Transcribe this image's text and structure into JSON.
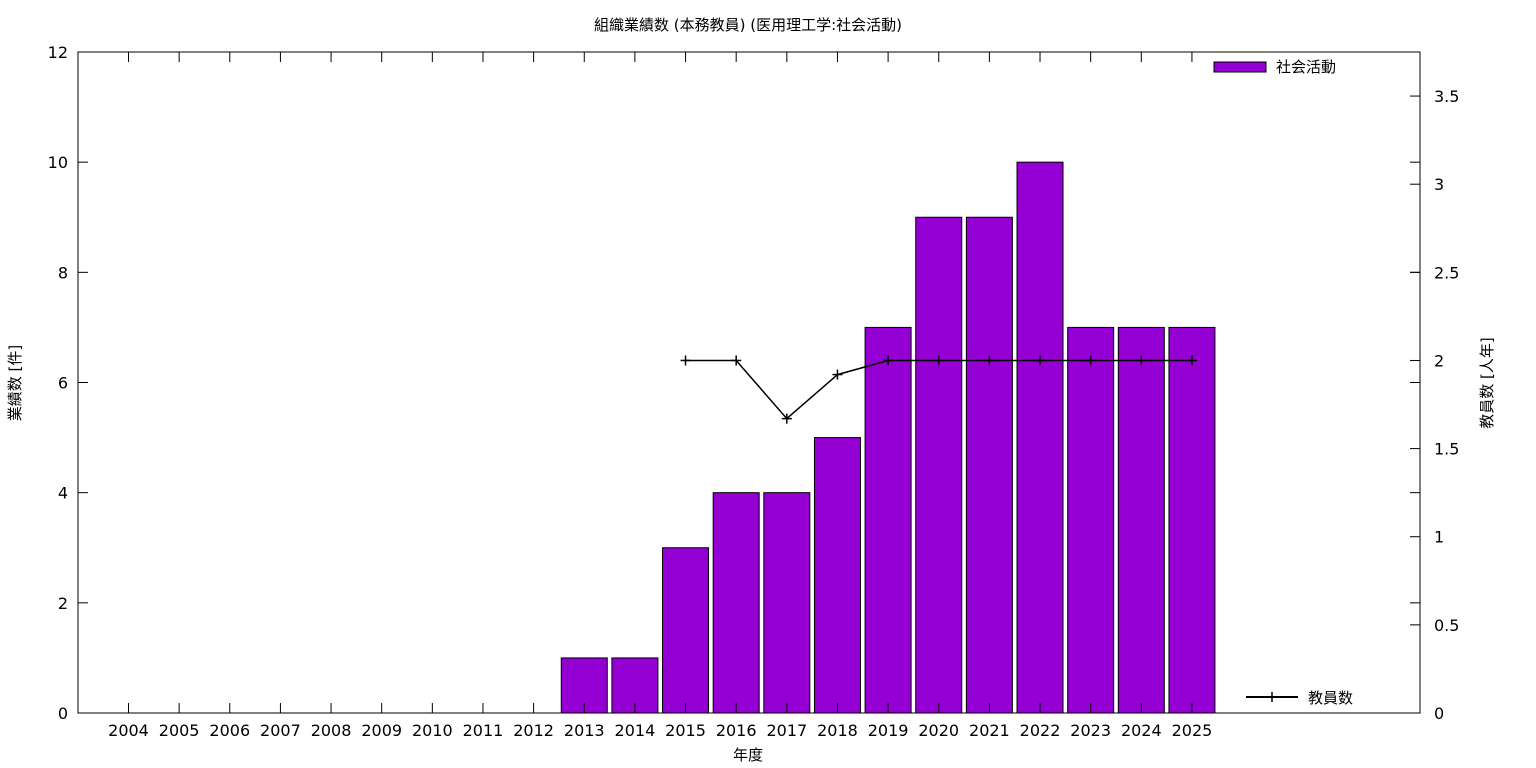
{
  "chart_data": {
    "type": "bar",
    "title": "組織業績数 (本務教員) (医用理工学:社会活動)",
    "xlabel": "年度",
    "ylabel": "業績数 [件]",
    "y2label": "教員数 [人年]",
    "categories": [
      "2004",
      "2005",
      "2006",
      "2007",
      "2008",
      "2009",
      "2010",
      "2011",
      "2012",
      "2013",
      "2014",
      "2015",
      "2016",
      "2017",
      "2018",
      "2019",
      "2020",
      "2021",
      "2022",
      "2023",
      "2024",
      "2025"
    ],
    "ylim": [
      0,
      12
    ],
    "y2lim": [
      0,
      3.75
    ],
    "yticks": [
      "0",
      "2",
      "4",
      "6",
      "8",
      "10",
      "12"
    ],
    "y2ticks": [
      "0",
      "0.5",
      "1",
      "1.5",
      "2",
      "2.5",
      "3",
      "3.5"
    ],
    "grid": false,
    "series": [
      {
        "name": "社会活動",
        "type": "bar",
        "axis": "left",
        "color": "#9400d3",
        "values": [
          0,
          0,
          0,
          0,
          0,
          0,
          0,
          0,
          0,
          1,
          1,
          3,
          4,
          4,
          5,
          7,
          9,
          9,
          10,
          7,
          7,
          7
        ]
      },
      {
        "name": "教員数",
        "type": "line",
        "axis": "right",
        "color": "#000000",
        "values": [
          null,
          null,
          null,
          null,
          null,
          null,
          null,
          null,
          null,
          null,
          null,
          2,
          2,
          1.67,
          1.92,
          2,
          2,
          2,
          2,
          2,
          2,
          2
        ]
      }
    ],
    "legend": [
      {
        "label": "社会活動",
        "placement": "top-right"
      },
      {
        "label": "教員数",
        "placement": "bottom-right"
      }
    ]
  }
}
